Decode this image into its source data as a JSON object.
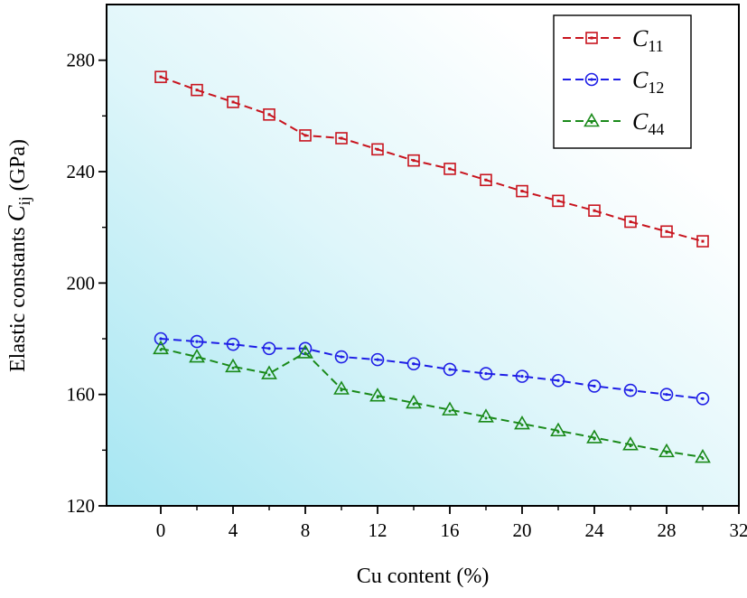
{
  "chart_data": {
    "type": "line",
    "xlabel": "Cu content (%)",
    "ylabel": {
      "prefix": "Elastic constants ",
      "symbol": "C",
      "subscript": "ij",
      "unit": " (GPa)"
    },
    "xlim": [
      -3,
      32
    ],
    "ylim": [
      120,
      300
    ],
    "xticks": [
      0,
      4,
      8,
      12,
      16,
      20,
      24,
      28,
      32
    ],
    "yticks": [
      120,
      160,
      200,
      240,
      280
    ],
    "grid": false,
    "legend_position": "top-right",
    "x": [
      0,
      2,
      4,
      6,
      8,
      10,
      12,
      14,
      16,
      18,
      20,
      22,
      24,
      26,
      28,
      30
    ],
    "series": [
      {
        "name": "C11",
        "symbol": "C",
        "subscript": "11",
        "marker": "square",
        "color": "#c8141e",
        "values": [
          274,
          269.3,
          265,
          260.5,
          253,
          252,
          248,
          244,
          241,
          237,
          233,
          229.5,
          226,
          222,
          218.5,
          215
        ]
      },
      {
        "name": "C12",
        "symbol": "C",
        "subscript": "12",
        "marker": "circle",
        "color": "#1e1ee6",
        "values": [
          180,
          179,
          178,
          176.5,
          176.5,
          173.5,
          172.5,
          171,
          169,
          167.5,
          166.5,
          165,
          163,
          161.5,
          160,
          158.5
        ]
      },
      {
        "name": "C44",
        "symbol": "C",
        "subscript": "44",
        "marker": "triangle",
        "color": "#1a8a1a",
        "values": [
          176.5,
          173.5,
          170,
          167.5,
          175,
          162,
          159.5,
          157,
          154.5,
          152,
          149.5,
          147,
          144.5,
          142,
          139.5,
          137.5
        ]
      }
    ]
  }
}
